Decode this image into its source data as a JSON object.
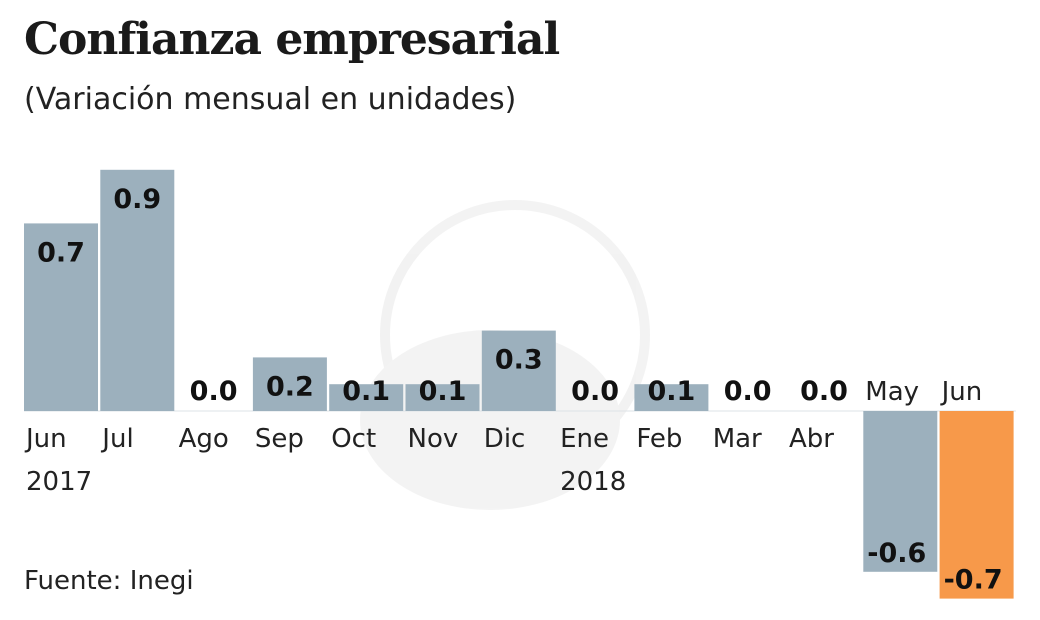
{
  "chart_data": {
    "type": "bar",
    "title": "Confianza empresarial",
    "subtitle": "(Variación mensual en unidades)",
    "source": "Fuente: Inegi",
    "categories": [
      "Jun",
      "Jul",
      "Ago",
      "Sep",
      "Oct",
      "Nov",
      "Dic",
      "Ene",
      "Feb",
      "Mar",
      "Abr",
      "May",
      "Jun"
    ],
    "year_labels": {
      "0": "2017",
      "7": "2018"
    },
    "values": [
      0.7,
      0.9,
      0.0,
      0.2,
      0.1,
      0.1,
      0.3,
      0.0,
      0.1,
      0.0,
      0.0,
      -0.6,
      -0.7
    ],
    "value_labels": [
      "0.7",
      "0.9",
      "0.0",
      "0.2",
      "0.1",
      "0.1",
      "0.3",
      "0.0",
      "0.1",
      "0.0",
      "0.0",
      "-0.6",
      "-0.7"
    ],
    "highlight_index": 12,
    "colors": {
      "bar": "#9cb0bd",
      "highlight": "#f7994a"
    },
    "grid": false
  }
}
